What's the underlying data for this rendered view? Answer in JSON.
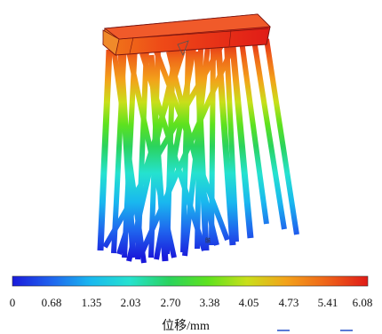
{
  "colorbar": {
    "tick_labels": [
      "0",
      "0.68",
      "1.35",
      "2.03",
      "2.70",
      "3.38",
      "4.05",
      "4.73",
      "5.41",
      "6.08"
    ],
    "unit_label": "位移/mm",
    "colors": [
      "#1a1adb",
      "#1f64ee",
      "#19b8ef",
      "#25e2cf",
      "#2ad35e",
      "#5ee21e",
      "#c9df1a",
      "#f3a21a",
      "#ef6619",
      "#e01b17"
    ]
  },
  "model": {
    "small_label": "骸"
  }
}
